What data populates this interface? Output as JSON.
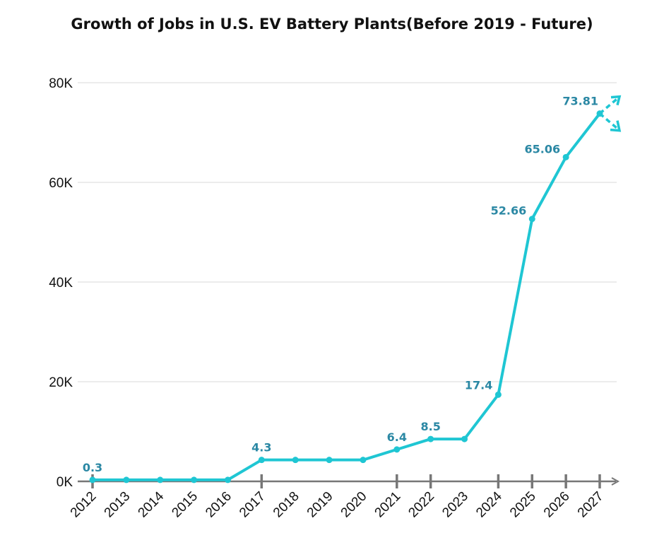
{
  "chart_data": {
    "type": "line",
    "title": "Growth of Jobs in U.S. EV Battery Plants(Before 2019 - Future)",
    "xlabel": "",
    "ylabel": "",
    "categories": [
      "2012",
      "2013",
      "2014",
      "2015",
      "2016",
      "2017",
      "2018",
      "2019",
      "2020",
      "2021",
      "2022",
      "2023",
      "2024",
      "2025",
      "2026",
      "2027"
    ],
    "values": [
      0.3,
      0.3,
      0.3,
      0.3,
      0.3,
      4.3,
      4.3,
      4.3,
      4.3,
      6.4,
      8.5,
      8.5,
      17.4,
      52.66,
      65.06,
      73.81
    ],
    "data_labels": {
      "2012": "0.3",
      "2017": "4.3",
      "2021": "6.4",
      "2022": "8.5",
      "2024": "17.4",
      "2025": "52.66",
      "2026": "65.06",
      "2027": "73.81"
    },
    "value_unit": "K",
    "ylim": [
      0,
      80
    ],
    "yticks": [
      0,
      20,
      40,
      60,
      80
    ],
    "ytick_labels": [
      "0K",
      "20K",
      "40K",
      "60K",
      "80K"
    ],
    "grid": true,
    "colors": {
      "line": "#1fc6d3",
      "label": "#2b88a4",
      "axis": "#777777",
      "grid": "#d9d9d9"
    }
  }
}
